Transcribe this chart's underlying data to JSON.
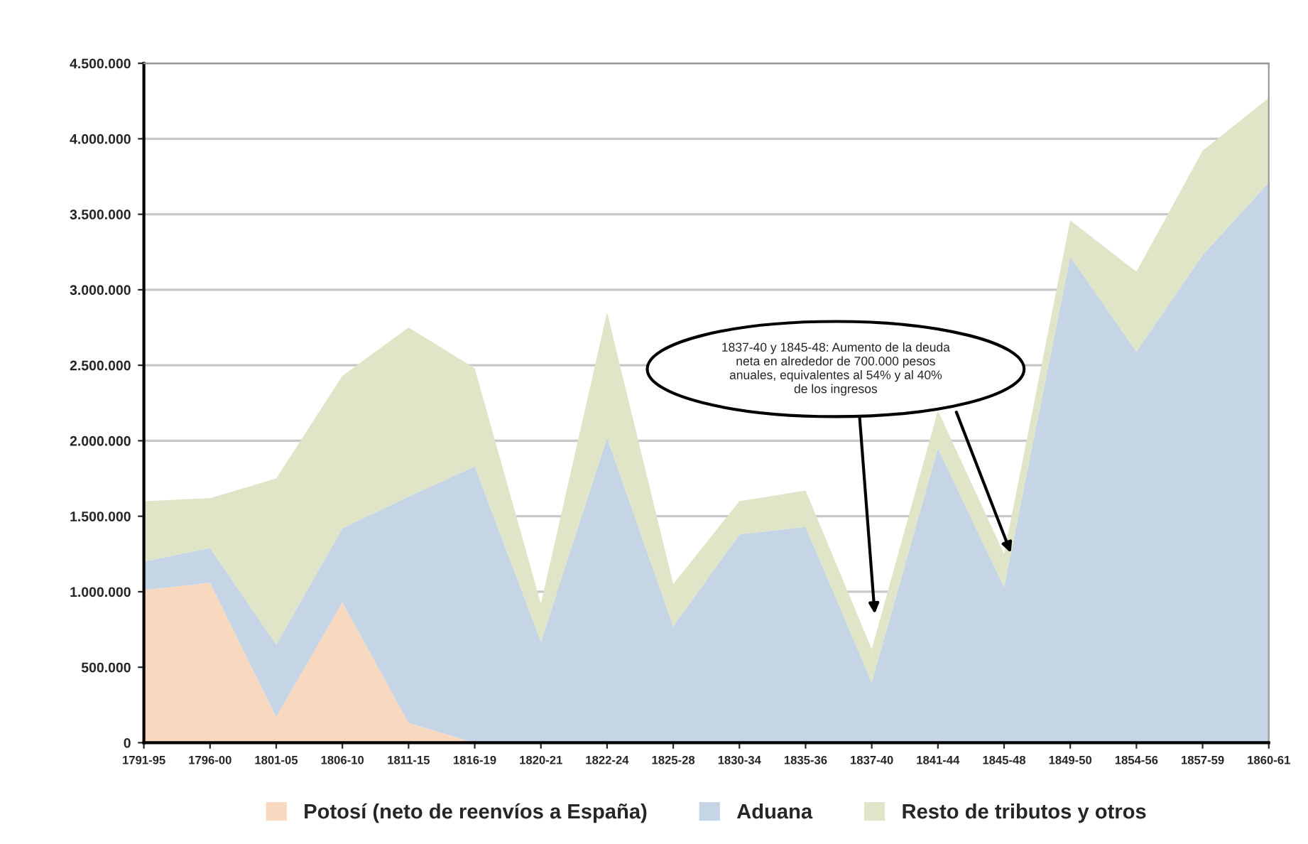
{
  "chart_data": {
    "type": "area",
    "stacked": true,
    "categories": [
      "1791-95",
      "1796-00",
      "1801-05",
      "1806-10",
      "1811-15",
      "1816-19",
      "1820-21",
      "1822-24",
      "1825-28",
      "1830-34",
      "1835-36",
      "1837-40",
      "1841-44",
      "1845-48",
      "1849-50",
      "1854-56",
      "1857-59",
      "1860-61"
    ],
    "series": [
      {
        "name": "Potosí (neto de reenvíos a España)",
        "color": "#f9d8c0",
        "values": [
          1010000,
          1060000,
          170000,
          930000,
          130000,
          0,
          0,
          0,
          0,
          0,
          0,
          0,
          0,
          0,
          0,
          0,
          0,
          0
        ]
      },
      {
        "name": "Aduana",
        "color": "#c5d5e5",
        "values": [
          190000,
          230000,
          480000,
          490000,
          1500000,
          1830000,
          670000,
          2020000,
          770000,
          1380000,
          1430000,
          400000,
          1950000,
          1030000,
          3220000,
          2590000,
          3230000,
          3710000
        ]
      },
      {
        "name": "Resto de tributos y otros",
        "color": "#dfe5c6",
        "values": [
          400000,
          330000,
          1100000,
          1010000,
          1120000,
          650000,
          250000,
          830000,
          280000,
          220000,
          240000,
          220000,
          250000,
          220000,
          240000,
          530000,
          690000,
          560000
        ]
      }
    ],
    "ylim": [
      0,
      4500000
    ],
    "yticks": [
      {
        "value": 0,
        "label": "0"
      },
      {
        "value": 500000,
        "label": "500.000"
      },
      {
        "value": 1000000,
        "label": "1.000.000"
      },
      {
        "value": 1500000,
        "label": "1.500.000"
      },
      {
        "value": 2000000,
        "label": "2.000.000"
      },
      {
        "value": 2500000,
        "label": "2.500.000"
      },
      {
        "value": 3000000,
        "label": "3.000.000"
      },
      {
        "value": 3500000,
        "label": "3.500.000"
      },
      {
        "value": 4000000,
        "label": "4.000.000"
      },
      {
        "value": 4500000,
        "label": "4.500.000"
      }
    ],
    "grid": "y",
    "legend": "bottom",
    "annotations": [
      "1837-40 y 1845-48: Aumento de la deuda neta en alrededor de 700.000 pesos anuales, equivalentes al 54% y al 40% de los ingresos"
    ]
  }
}
